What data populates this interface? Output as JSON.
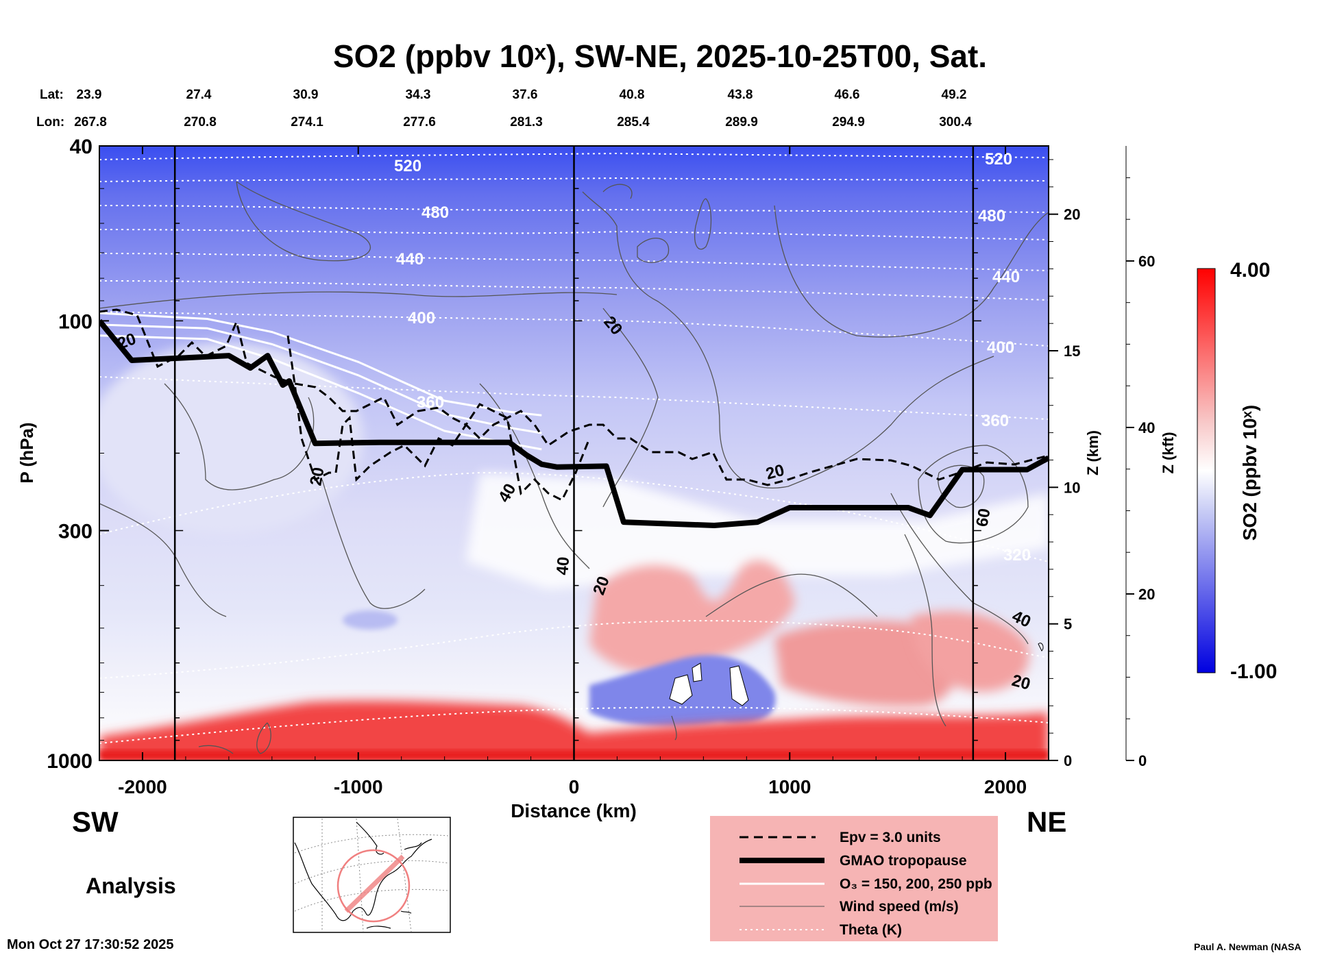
{
  "chart_data": {
    "type": "heatmap",
    "title": "SO2 (ppbv 10ˣ), SW-NE, 2025-10-25T00, Sat.",
    "xlabel": "Distance (km)",
    "ylabel": "P (hPa)",
    "y2label": "Z (km)",
    "y3label": "Z (kft)",
    "xlim": [
      -2200,
      2200
    ],
    "ylim": [
      1000,
      40
    ],
    "y_scale": "log",
    "x_ticks": [
      -2000,
      -1000,
      0,
      1000,
      2000
    ],
    "x_tick_labels": [
      "-2000",
      "-1000",
      "0",
      "1000",
      "2000"
    ],
    "y_ticks": [
      40,
      100,
      300,
      1000
    ],
    "y_tick_labels": [
      "40",
      "100",
      "300",
      "1000"
    ],
    "z_km_ticks": [
      0,
      5,
      10,
      15,
      20
    ],
    "z_kft_ticks": [
      0,
      20,
      40,
      60
    ],
    "lat_label": "Lat:",
    "lon_label": "Lon:",
    "lat_values": [
      "23.9",
      "27.4",
      "30.9",
      "34.3",
      "37.6",
      "40.8",
      "43.8",
      "46.6",
      "49.2"
    ],
    "lon_values": [
      "267.8",
      "270.8",
      "274.1",
      "277.6",
      "281.3",
      "285.4",
      "289.9",
      "294.9",
      "300.4"
    ],
    "colorbar": {
      "label": "SO2 (ppbv 10ˣ)",
      "min": -1.0,
      "max": 4.0,
      "min_label": "-1.00",
      "max_label": "4.00",
      "colors": [
        "#0000e0",
        "#ffffff",
        "#ff0000"
      ]
    },
    "theta_contours_K": [
      320,
      360,
      400,
      440,
      480,
      520
    ],
    "wind_contours_ms": [
      20,
      40,
      60
    ],
    "tropopause_hPa": [
      [
        -2200,
        100
      ],
      [
        -2050,
        123
      ],
      [
        -1900,
        122
      ],
      [
        -1600,
        120
      ],
      [
        -1500,
        128
      ],
      [
        -1420,
        120
      ],
      [
        -1350,
        140
      ],
      [
        -1320,
        137
      ],
      [
        -1200,
        190
      ],
      [
        -900,
        189
      ],
      [
        -300,
        189
      ],
      [
        -220,
        202
      ],
      [
        -150,
        212
      ],
      [
        -80,
        215
      ],
      [
        150,
        214
      ],
      [
        230,
        287
      ],
      [
        650,
        292
      ],
      [
        850,
        287
      ],
      [
        1000,
        266
      ],
      [
        1550,
        266
      ],
      [
        1650,
        277
      ],
      [
        1800,
        218
      ],
      [
        2100,
        218
      ],
      [
        2200,
        205
      ]
    ],
    "o3_lines_hPa": [
      {
        "value": "150",
        "points": [
          [
            -2200,
            96
          ],
          [
            -1700,
            99
          ],
          [
            -1400,
            106
          ],
          [
            -1000,
            124
          ],
          [
            -600,
            152
          ],
          [
            -300,
            161
          ],
          [
            -150,
            164
          ]
        ]
      },
      {
        "value": "200",
        "points": [
          [
            -2200,
            102
          ],
          [
            -1700,
            104
          ],
          [
            -1400,
            113
          ],
          [
            -1000,
            133
          ],
          [
            -600,
            163
          ],
          [
            -300,
            175
          ],
          [
            -150,
            180
          ]
        ]
      },
      {
        "value": "250",
        "points": [
          [
            -2200,
            108
          ],
          [
            -1700,
            110
          ],
          [
            -1400,
            122
          ],
          [
            -1000,
            146
          ],
          [
            -600,
            178
          ],
          [
            -300,
            190
          ],
          [
            -150,
            196
          ]
        ]
      }
    ],
    "vertical_reference_lines_km": [
      -1850,
      0,
      1850
    ],
    "sw_label": "SW",
    "ne_label": "NE",
    "analysis_label": "Analysis",
    "legend": [
      {
        "label": "Epv = 3.0 units",
        "style": "dashed"
      },
      {
        "label": "GMAO tropopause",
        "style": "thick"
      },
      {
        "label": "O₃ = 150, 200, 250 ppb",
        "style": "white"
      },
      {
        "label": "Wind speed (m/s)",
        "style": "thin"
      },
      {
        "label": "Theta (K)",
        "style": "dotted"
      }
    ],
    "timestamp": "Mon Oct 27 17:30:52 2025",
    "credit": "Paul A. Newman (NASA",
    "legend_placement": "bottom-right",
    "grid": false
  }
}
